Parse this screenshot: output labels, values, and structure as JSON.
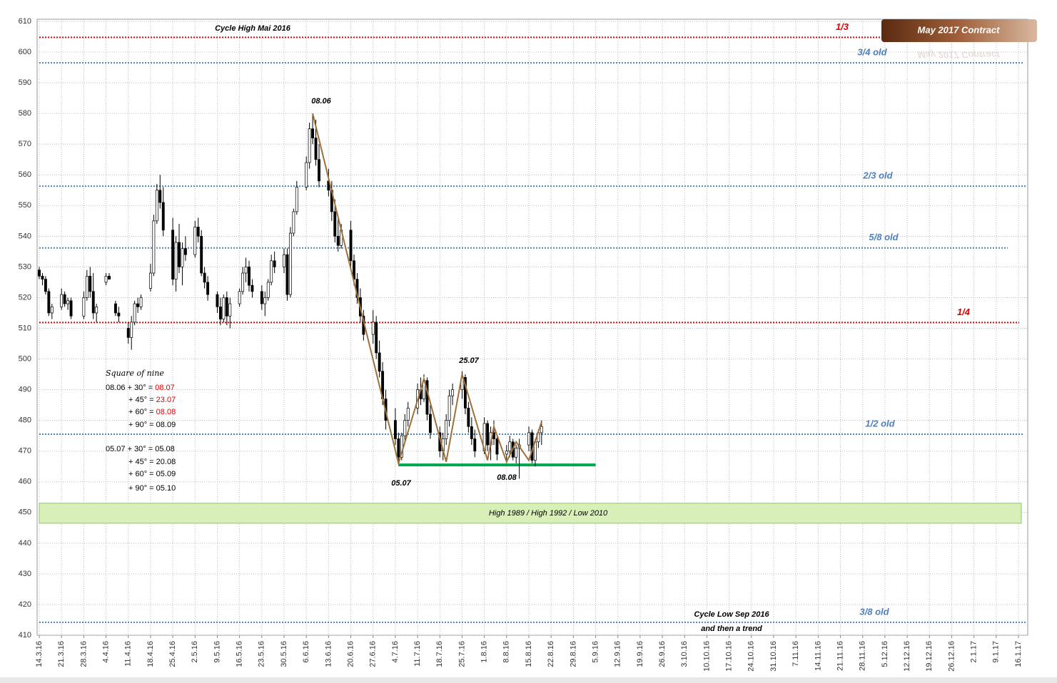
{
  "chart_data": {
    "type": "candlestick",
    "xlim": [
      "14.3.16",
      "16.1.17"
    ],
    "ylim": [
      410,
      610
    ],
    "yticks": [
      410,
      420,
      430,
      440,
      450,
      460,
      470,
      480,
      490,
      500,
      510,
      520,
      530,
      540,
      550,
      560,
      570,
      580,
      590,
      600,
      610
    ],
    "xticks": [
      "14.3.16",
      "21.3.16",
      "28.3.16",
      "4.4.16",
      "11.4.16",
      "18.4.16",
      "25.4.16",
      "2.5.16",
      "9.5.16",
      "16.5.16",
      "23.5.16",
      "30.5.16",
      "6.6.16",
      "13.6.16",
      "20.6.16",
      "27.6.16",
      "4.7.16",
      "11.7.16",
      "18.7.16",
      "25.7.16",
      "1.8.16",
      "8.8.16",
      "15.8.16",
      "22.8.16",
      "29.8.16",
      "5.9.16",
      "12.9.16",
      "19.9.16",
      "26.9.16",
      "3.10.16",
      "10.10.16",
      "17.10.16",
      "24.10.16",
      "31.10.16",
      "7.11.16",
      "14.11.16",
      "21.11.16",
      "28.11.16",
      "5.12.16",
      "12.12.16",
      "19.12.16",
      "26.12.16",
      "2.1.17",
      "9.1.17",
      "16.1.17"
    ],
    "grid": true,
    "x": [
      "14.3.16",
      "15.3.16",
      "16.3.16",
      "17.3.16",
      "18.3.16",
      "21.3.16",
      "22.3.16",
      "23.3.16",
      "24.3.16",
      "28.3.16",
      "29.3.16",
      "30.3.16",
      "31.3.16",
      "1.4.16",
      "4.4.16",
      "5.4.16",
      "7.4.16",
      "8.4.16",
      "11.4.16",
      "12.4.16",
      "13.4.16",
      "14.4.16",
      "15.4.16",
      "18.4.16",
      "19.4.16",
      "20.4.16",
      "21.4.16",
      "22.4.16",
      "25.4.16",
      "26.4.16",
      "27.4.16",
      "28.4.16",
      "29.4.16",
      "2.5.16",
      "3.5.16",
      "4.5.16",
      "5.5.16",
      "6.5.16",
      "9.5.16",
      "10.5.16",
      "11.5.16",
      "12.5.16",
      "13.5.16",
      "16.5.16",
      "17.5.16",
      "18.5.16",
      "19.5.16",
      "20.5.16",
      "23.5.16",
      "24.5.16",
      "25.5.16",
      "26.5.16",
      "27.5.16",
      "30.5.16",
      "31.5.16",
      "1.6.16",
      "2.6.16",
      "3.6.16",
      "6.6.16",
      "7.6.16",
      "8.6.16",
      "9.6.16",
      "10.6.16",
      "13.6.16",
      "14.6.16",
      "15.6.16",
      "16.6.16",
      "17.6.16",
      "20.6.16",
      "21.6.16",
      "22.6.16",
      "23.6.16",
      "24.6.16",
      "27.6.16",
      "28.6.16",
      "29.6.16",
      "30.6.16",
      "1.7.16",
      "4.7.16",
      "5.7.16",
      "6.7.16",
      "7.7.16",
      "8.7.16",
      "11.7.16",
      "12.7.16",
      "13.7.16",
      "14.7.16",
      "15.7.16",
      "18.7.16",
      "19.7.16",
      "20.7.16",
      "21.7.16",
      "22.7.16",
      "25.7.16",
      "26.7.16",
      "27.7.16",
      "28.7.16",
      "29.7.16",
      "1.8.16",
      "2.8.16",
      "3.8.16",
      "4.8.16",
      "5.8.16",
      "8.8.16",
      "9.8.16",
      "10.8.16",
      "11.8.16",
      "12.8.16",
      "15.8.16",
      "16.8.16",
      "17.8.16",
      "18.8.16",
      "19.8.16"
    ],
    "open": [
      529,
      527,
      526,
      522,
      515,
      517,
      521,
      518,
      519,
      514,
      520,
      527,
      522,
      515,
      525,
      527,
      518,
      515,
      510,
      507,
      512,
      518,
      517,
      523,
      528,
      545,
      555,
      551,
      542,
      526,
      538,
      530,
      536,
      534,
      543,
      540,
      528,
      525,
      521,
      517,
      513,
      520,
      514,
      518,
      522,
      528,
      530,
      524,
      522,
      518,
      520,
      525,
      532,
      530,
      534,
      521,
      541,
      548,
      556,
      564,
      575,
      572,
      565,
      558,
      555,
      548,
      540,
      537,
      542,
      532,
      526,
      520,
      514,
      508,
      512,
      502,
      496,
      487,
      480,
      474,
      468,
      475,
      480,
      484,
      490,
      487,
      493,
      482,
      476,
      470,
      474,
      480,
      488,
      490,
      494,
      484,
      478,
      474,
      470,
      479,
      472,
      476,
      474,
      469,
      470,
      473,
      468,
      471,
      472,
      476,
      467,
      473,
      476
    ],
    "high": [
      530,
      528,
      527,
      523,
      518,
      523,
      522,
      520,
      520,
      522,
      529,
      530,
      528,
      518,
      528,
      528,
      519,
      517,
      512,
      514,
      519,
      520,
      521,
      531,
      547,
      557,
      560,
      556,
      546,
      540,
      544,
      538,
      540,
      545,
      546,
      542,
      530,
      527,
      522,
      520,
      521,
      522,
      520,
      523,
      530,
      533,
      532,
      526,
      524,
      522,
      526,
      534,
      535,
      536,
      536,
      543,
      549,
      558,
      566,
      577,
      580,
      578,
      570,
      562,
      558,
      552,
      546,
      544,
      545,
      534,
      528,
      523,
      516,
      516,
      514,
      506,
      499,
      490,
      484,
      476,
      476,
      482,
      486,
      492,
      494,
      495,
      494,
      485,
      478,
      476,
      482,
      490,
      492,
      496,
      495,
      486,
      481,
      477,
      481,
      480,
      478,
      480,
      475,
      472,
      475,
      474,
      472,
      474,
      478,
      477,
      474,
      477,
      480
    ],
    "low": [
      526,
      524,
      521,
      514,
      513,
      516,
      517,
      516,
      513,
      513,
      519,
      520,
      513,
      512,
      524,
      526,
      514,
      512,
      505,
      503,
      511,
      515,
      516,
      522,
      527,
      544,
      549,
      540,
      524,
      522,
      528,
      524,
      532,
      533,
      538,
      527,
      523,
      519,
      515,
      511,
      512,
      511,
      510,
      517,
      521,
      525,
      522,
      520,
      516,
      514,
      519,
      524,
      528,
      528,
      519,
      520,
      540,
      547,
      555,
      562,
      570,
      563,
      556,
      553,
      545,
      538,
      535,
      536,
      530,
      524,
      518,
      512,
      506,
      505,
      500,
      494,
      485,
      477,
      472,
      466,
      467,
      473,
      478,
      482,
      485,
      486,
      480,
      474,
      468,
      467,
      472,
      478,
      485,
      487,
      482,
      476,
      472,
      468,
      469,
      470,
      467,
      472,
      467,
      466,
      468,
      467,
      466,
      461,
      470,
      466,
      465,
      471,
      472
    ],
    "close": [
      527,
      526,
      522,
      515,
      517,
      521,
      518,
      519,
      514,
      520,
      527,
      522,
      515,
      517,
      527,
      526,
      515,
      514,
      507,
      512,
      518,
      517,
      520,
      528,
      545,
      555,
      551,
      542,
      526,
      538,
      530,
      536,
      534,
      543,
      540,
      528,
      525,
      521,
      517,
      513,
      520,
      514,
      518,
      522,
      528,
      530,
      524,
      522,
      518,
      520,
      525,
      532,
      530,
      534,
      521,
      541,
      548,
      556,
      564,
      575,
      572,
      565,
      558,
      555,
      548,
      540,
      537,
      542,
      532,
      526,
      520,
      514,
      508,
      512,
      502,
      496,
      487,
      480,
      474,
      468,
      475,
      480,
      484,
      490,
      487,
      493,
      482,
      476,
      470,
      474,
      480,
      488,
      490,
      494,
      484,
      478,
      474,
      470,
      479,
      472,
      476,
      474,
      469,
      470,
      473,
      468,
      471,
      472,
      476,
      467,
      473,
      476,
      478
    ],
    "zigzag": {
      "color": "#a0703a",
      "x": [
        "8.6.16",
        "5.7.16",
        "13.7.16",
        "20.7.16",
        "25.7.16",
        "2.8.16",
        "4.8.16",
        "8.8.16",
        "11.8.16",
        "15.8.16",
        "19.8.16"
      ],
      "values": [
        580,
        466,
        493.5,
        466.5,
        495,
        467,
        478,
        466.5,
        473,
        467,
        479.5
      ]
    },
    "levels": [
      {
        "value": 604.8,
        "label": "1/3",
        "color": "#e00000"
      },
      {
        "value": 596.5,
        "label": "3/4 old",
        "color": "#4f81bd"
      },
      {
        "value": 556.3,
        "label": "2/3 old",
        "color": "#4f81bd"
      },
      {
        "value": 536.2,
        "label": "5/8 old",
        "color": "#4f81bd"
      },
      {
        "value": 511.9,
        "label": "1/4",
        "color": "#e00000"
      },
      {
        "value": 475.5,
        "label": "1/2 old",
        "color": "#4f81bd"
      },
      {
        "value": 414.2,
        "label": "3/8 old",
        "color": "#4f81bd"
      }
    ],
    "support": {
      "value": 465.5,
      "x": [
        "5.7.16",
        "5.9.16"
      ],
      "color": "#00a650"
    },
    "band": {
      "from": 453,
      "to": 446.5,
      "label": "High 1989 / High 1992 / Low 2010"
    },
    "annotations": [
      "Cycle High Mai 2016",
      "08.06",
      "05.07",
      "25.07",
      "08.08",
      "Cycle Low Sep 2016",
      "and then a trend"
    ],
    "badge": "May 2017 Contract",
    "square_of_nine": {
      "title": "Square of nine",
      "rows": [
        {
          "left": "08.06 + 30° =",
          "right": "08.07",
          "color": "#e00000"
        },
        {
          "left": "+ 45° =",
          "right": "23.07",
          "color": "#e00000"
        },
        {
          "left": "+ 60° =",
          "right": "08.08",
          "color": "#e00000"
        },
        {
          "left": "+ 90° =",
          "right": "08.09",
          "color": "#000000"
        },
        {
          "left": "05.07 + 30° =",
          "right": "05.08",
          "color": "#000000"
        },
        {
          "left": "+ 45° =",
          "right": "20.08",
          "color": "#000000"
        },
        {
          "left": "+ 60° =",
          "right": "05.09",
          "color": "#000000"
        },
        {
          "left": "+ 90° =",
          "right": "05.10",
          "color": "#000000"
        }
      ]
    }
  }
}
